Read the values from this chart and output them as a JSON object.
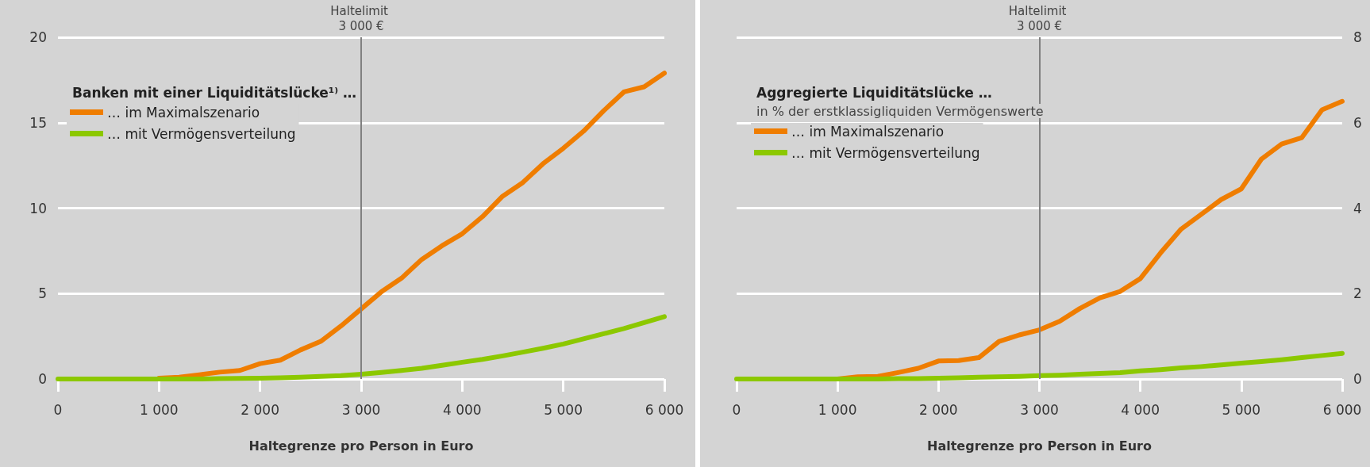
{
  "chart_data": [
    {
      "type": "line",
      "legend_title": "Banken mit einer Liquiditätslücke¹⁾ …",
      "xlabel": "Haltegrenze pro Person in Euro",
      "x": [
        0,
        200,
        400,
        600,
        800,
        1000,
        1200,
        1400,
        1600,
        1800,
        2000,
        2200,
        2400,
        2600,
        2800,
        3000,
        3200,
        3400,
        3600,
        3800,
        4000,
        4200,
        4400,
        4600,
        4800,
        5000,
        5200,
        5400,
        5600,
        5800,
        6000
      ],
      "series": [
        {
          "name": "… im Maximalszenario",
          "color": "#ef7d00",
          "values": [
            null,
            null,
            null,
            null,
            null,
            0.05,
            0.1,
            0.25,
            0.4,
            0.5,
            0.9,
            1.1,
            1.7,
            2.2,
            3.1,
            4.1,
            5.1,
            5.9,
            7.0,
            7.8,
            8.5,
            9.5,
            10.7,
            11.5,
            12.6,
            13.5,
            14.5,
            15.7,
            16.8,
            17.1,
            17.9
          ]
        },
        {
          "name": "… mit Vermögensverteilung",
          "color": "#8cc800",
          "values": [
            0,
            0,
            0,
            0,
            0,
            0,
            0,
            0,
            0.02,
            0.03,
            0.05,
            0.07,
            0.1,
            0.15,
            0.2,
            0.28,
            0.38,
            0.5,
            0.63,
            0.8,
            0.98,
            1.15,
            1.35,
            1.57,
            1.8,
            2.05,
            2.35,
            2.65,
            2.95,
            3.3,
            3.65
          ]
        }
      ],
      "xlim": [
        0,
        6000
      ],
      "xticks": [
        0,
        {
          "value": 1000,
          "label": "1 000"
        },
        {
          "value": 2000,
          "label": "2 000"
        },
        {
          "value": 3000,
          "label": "3 000"
        },
        {
          "value": 4000,
          "label": "4 000"
        },
        {
          "value": 5000,
          "label": "5 000"
        },
        {
          "value": 6000,
          "label": "6 000"
        }
      ],
      "ylim": [
        0,
        20
      ],
      "yticks": [
        0,
        5,
        10,
        15,
        20
      ],
      "grid": "y",
      "legend": "top left",
      "marker": "none",
      "line_style": "solid",
      "ref_lines": [
        {
          "axis": "x",
          "value": 3000,
          "label": "Haltelimit 3 000 €",
          "color": "#808080"
        }
      ]
    },
    {
      "type": "line",
      "legend_title": "Aggregierte Liquiditätslücke …",
      "ylabel": "in % der erstklassigliquiden Vermögenswerte",
      "xlabel": "Haltegrenze pro Person in Euro",
      "x": [
        0,
        200,
        400,
        600,
        800,
        1000,
        1200,
        1400,
        1600,
        1800,
        2000,
        2200,
        2400,
        2600,
        2800,
        3000,
        3200,
        3400,
        3600,
        3800,
        4000,
        4200,
        4400,
        4600,
        4800,
        5000,
        5200,
        5400,
        5600,
        5800,
        6000
      ],
      "series": [
        {
          "name": "… im Maximalszenario",
          "color": "#ef7d00",
          "values": [
            null,
            null,
            null,
            null,
            null,
            0,
            0.05,
            0.06,
            0.15,
            0.25,
            0.42,
            0.43,
            0.5,
            0.88,
            1.03,
            1.15,
            1.35,
            1.65,
            1.9,
            2.05,
            2.35,
            2.95,
            3.5,
            3.85,
            4.2,
            4.45,
            5.15,
            5.5,
            5.65,
            6.3,
            6.5
          ]
        },
        {
          "name": "… mit Vermögensverteilung",
          "color": "#8cc800",
          "values": [
            0,
            0,
            0,
            0,
            0,
            0,
            0,
            0,
            0.01,
            0.01,
            0.02,
            0.03,
            0.04,
            0.05,
            0.06,
            0.08,
            0.09,
            0.11,
            0.13,
            0.15,
            0.19,
            0.22,
            0.26,
            0.29,
            0.33,
            0.37,
            0.41,
            0.45,
            0.5,
            0.55,
            0.6
          ]
        }
      ],
      "xlim": [
        0,
        6000
      ],
      "xticks": [
        0,
        {
          "value": 1000,
          "label": "1 000"
        },
        {
          "value": 2000,
          "label": "2 000"
        },
        {
          "value": 3000,
          "label": "3 000"
        },
        {
          "value": 4000,
          "label": "4 000"
        },
        {
          "value": 5000,
          "label": "5 000"
        },
        {
          "value": 6000,
          "label": "6 000"
        }
      ],
      "ylim": [
        0,
        8
      ],
      "yticks": [
        0,
        2,
        4,
        6,
        8
      ],
      "grid": "y",
      "legend": "top left",
      "marker": "none",
      "line_style": "solid",
      "ref_lines": [
        {
          "axis": "x",
          "value": 3000,
          "label": "Haltelimit 3 000 €",
          "color": "#808080"
        }
      ]
    }
  ]
}
